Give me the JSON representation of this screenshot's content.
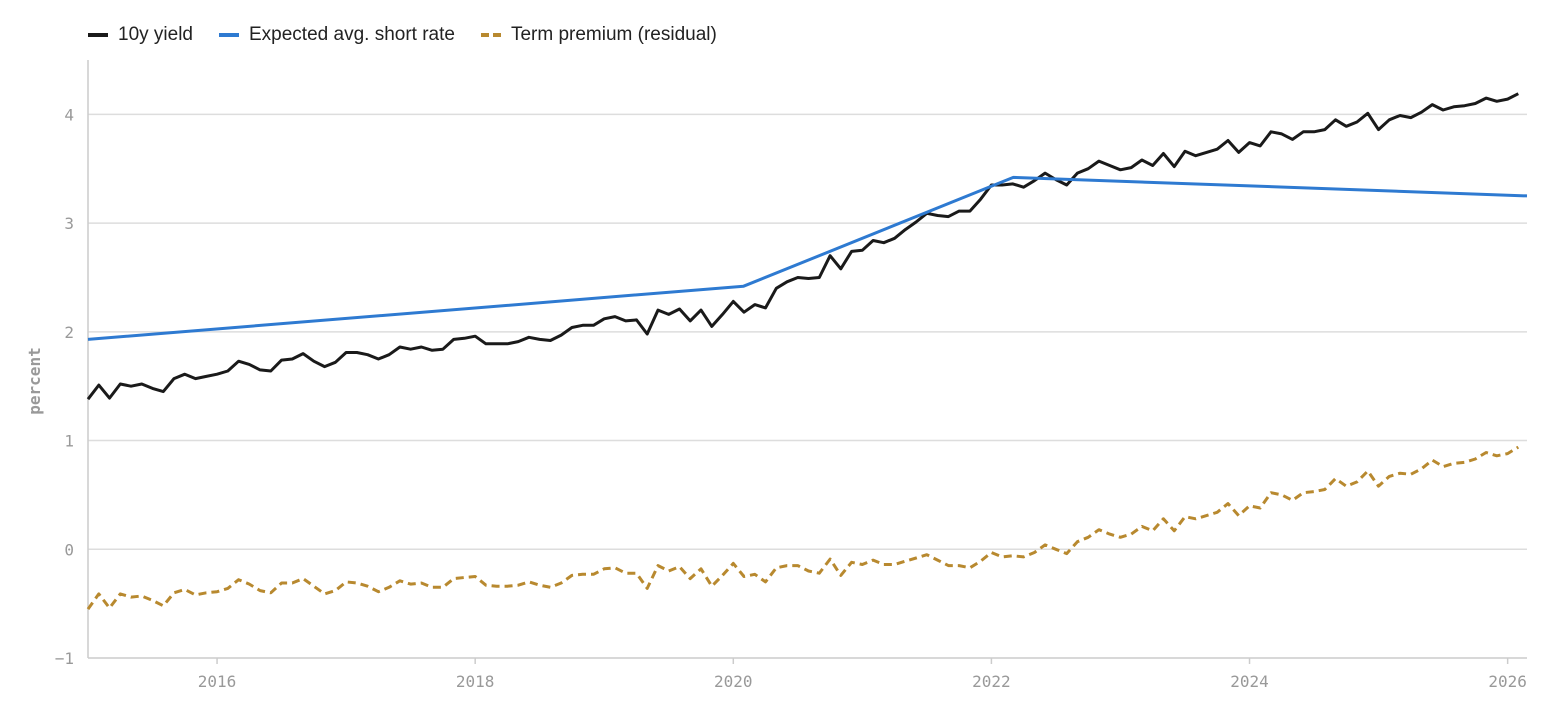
{
  "chart_data": {
    "type": "line",
    "ylabel": "percent",
    "xlabel": "",
    "title": "",
    "xlim": [
      2015.0,
      2026.15
    ],
    "ylim": [
      -1,
      4.5
    ],
    "x_ticks": [
      "2016",
      "2018",
      "2020",
      "2022",
      "2024",
      "2026"
    ],
    "y_ticks": [
      "−1",
      "0",
      "1",
      "2",
      "3",
      "4"
    ],
    "grid": "horizontal",
    "legend_placement": "top-left",
    "series": [
      {
        "name": "10y yield",
        "color": "#1a1a1a",
        "style": "solid",
        "x_start": 2015.0,
        "x_step": 0.08333,
        "values": [
          1.38,
          1.51,
          1.39,
          1.52,
          1.5,
          1.52,
          1.48,
          1.45,
          1.57,
          1.61,
          1.57,
          1.59,
          1.61,
          1.64,
          1.73,
          1.7,
          1.65,
          1.64,
          1.74,
          1.75,
          1.8,
          1.73,
          1.68,
          1.72,
          1.81,
          1.81,
          1.79,
          1.75,
          1.79,
          1.86,
          1.84,
          1.86,
          1.83,
          1.84,
          1.93,
          1.94,
          1.96,
          1.89,
          1.89,
          1.89,
          1.91,
          1.95,
          1.93,
          1.92,
          1.97,
          2.04,
          2.06,
          2.06,
          2.12,
          2.14,
          2.1,
          2.11,
          1.98,
          2.2,
          2.16,
          2.21,
          2.1,
          2.2,
          2.05,
          2.16,
          2.28,
          2.18,
          2.25,
          2.22,
          2.4,
          2.46,
          2.5,
          2.49,
          2.5,
          2.7,
          2.58,
          2.74,
          2.75,
          2.84,
          2.82,
          2.86,
          2.94,
          3.01,
          3.09,
          3.07,
          3.06,
          3.11,
          3.11,
          3.22,
          3.35,
          3.35,
          3.36,
          3.33,
          3.39,
          3.46,
          3.4,
          3.35,
          3.46,
          3.5,
          3.57,
          3.53,
          3.49,
          3.51,
          3.58,
          3.53,
          3.64,
          3.52,
          3.66,
          3.62,
          3.65,
          3.68,
          3.76,
          3.65,
          3.74,
          3.71,
          3.84,
          3.82,
          3.77,
          3.84,
          3.84,
          3.86,
          3.95,
          3.89,
          3.93,
          4.01,
          3.86,
          3.95,
          3.99,
          3.97,
          4.02,
          4.09,
          4.04,
          4.07,
          4.08,
          4.1,
          4.15,
          4.12,
          4.14,
          4.19
        ]
      },
      {
        "name": "Expected avg. short rate",
        "color": "#2e7ad1",
        "style": "solid",
        "points": [
          [
            2015.0,
            1.93
          ],
          [
            2020.08,
            2.42
          ],
          [
            2022.17,
            3.42
          ],
          [
            2026.15,
            3.25
          ]
        ]
      },
      {
        "name": "Term premium (residual)",
        "color": "#b8892f",
        "style": "dashed",
        "x_start": 2015.0,
        "x_step": 0.08333,
        "values": [
          -0.55,
          -0.41,
          -0.54,
          -0.41,
          -0.44,
          -0.43,
          -0.47,
          -0.52,
          -0.4,
          -0.37,
          -0.42,
          -0.4,
          -0.39,
          -0.36,
          -0.28,
          -0.32,
          -0.38,
          -0.4,
          -0.31,
          -0.31,
          -0.27,
          -0.34,
          -0.41,
          -0.38,
          -0.3,
          -0.31,
          -0.34,
          -0.39,
          -0.35,
          -0.29,
          -0.32,
          -0.31,
          -0.35,
          -0.35,
          -0.27,
          -0.26,
          -0.25,
          -0.33,
          -0.34,
          -0.34,
          -0.33,
          -0.3,
          -0.33,
          -0.35,
          -0.31,
          -0.24,
          -0.23,
          -0.23,
          -0.18,
          -0.17,
          -0.22,
          -0.22,
          -0.36,
          -0.15,
          -0.2,
          -0.16,
          -0.27,
          -0.18,
          -0.34,
          -0.24,
          -0.13,
          -0.25,
          -0.23,
          -0.3,
          -0.17,
          -0.15,
          -0.15,
          -0.2,
          -0.22,
          -0.09,
          -0.24,
          -0.12,
          -0.14,
          -0.1,
          -0.14,
          -0.14,
          -0.11,
          -0.08,
          -0.05,
          -0.1,
          -0.15,
          -0.15,
          -0.17,
          -0.11,
          -0.03,
          -0.07,
          -0.06,
          -0.07,
          -0.03,
          0.04,
          0.0,
          -0.04,
          0.07,
          0.11,
          0.18,
          0.14,
          0.11,
          0.14,
          0.21,
          0.17,
          0.28,
          0.17,
          0.3,
          0.28,
          0.31,
          0.34,
          0.42,
          0.31,
          0.4,
          0.38,
          0.52,
          0.5,
          0.45,
          0.52,
          0.53,
          0.55,
          0.65,
          0.58,
          0.62,
          0.72,
          0.58,
          0.67,
          0.7,
          0.69,
          0.74,
          0.82,
          0.76,
          0.79,
          0.8,
          0.83,
          0.89,
          0.86,
          0.88,
          0.94
        ]
      }
    ]
  }
}
